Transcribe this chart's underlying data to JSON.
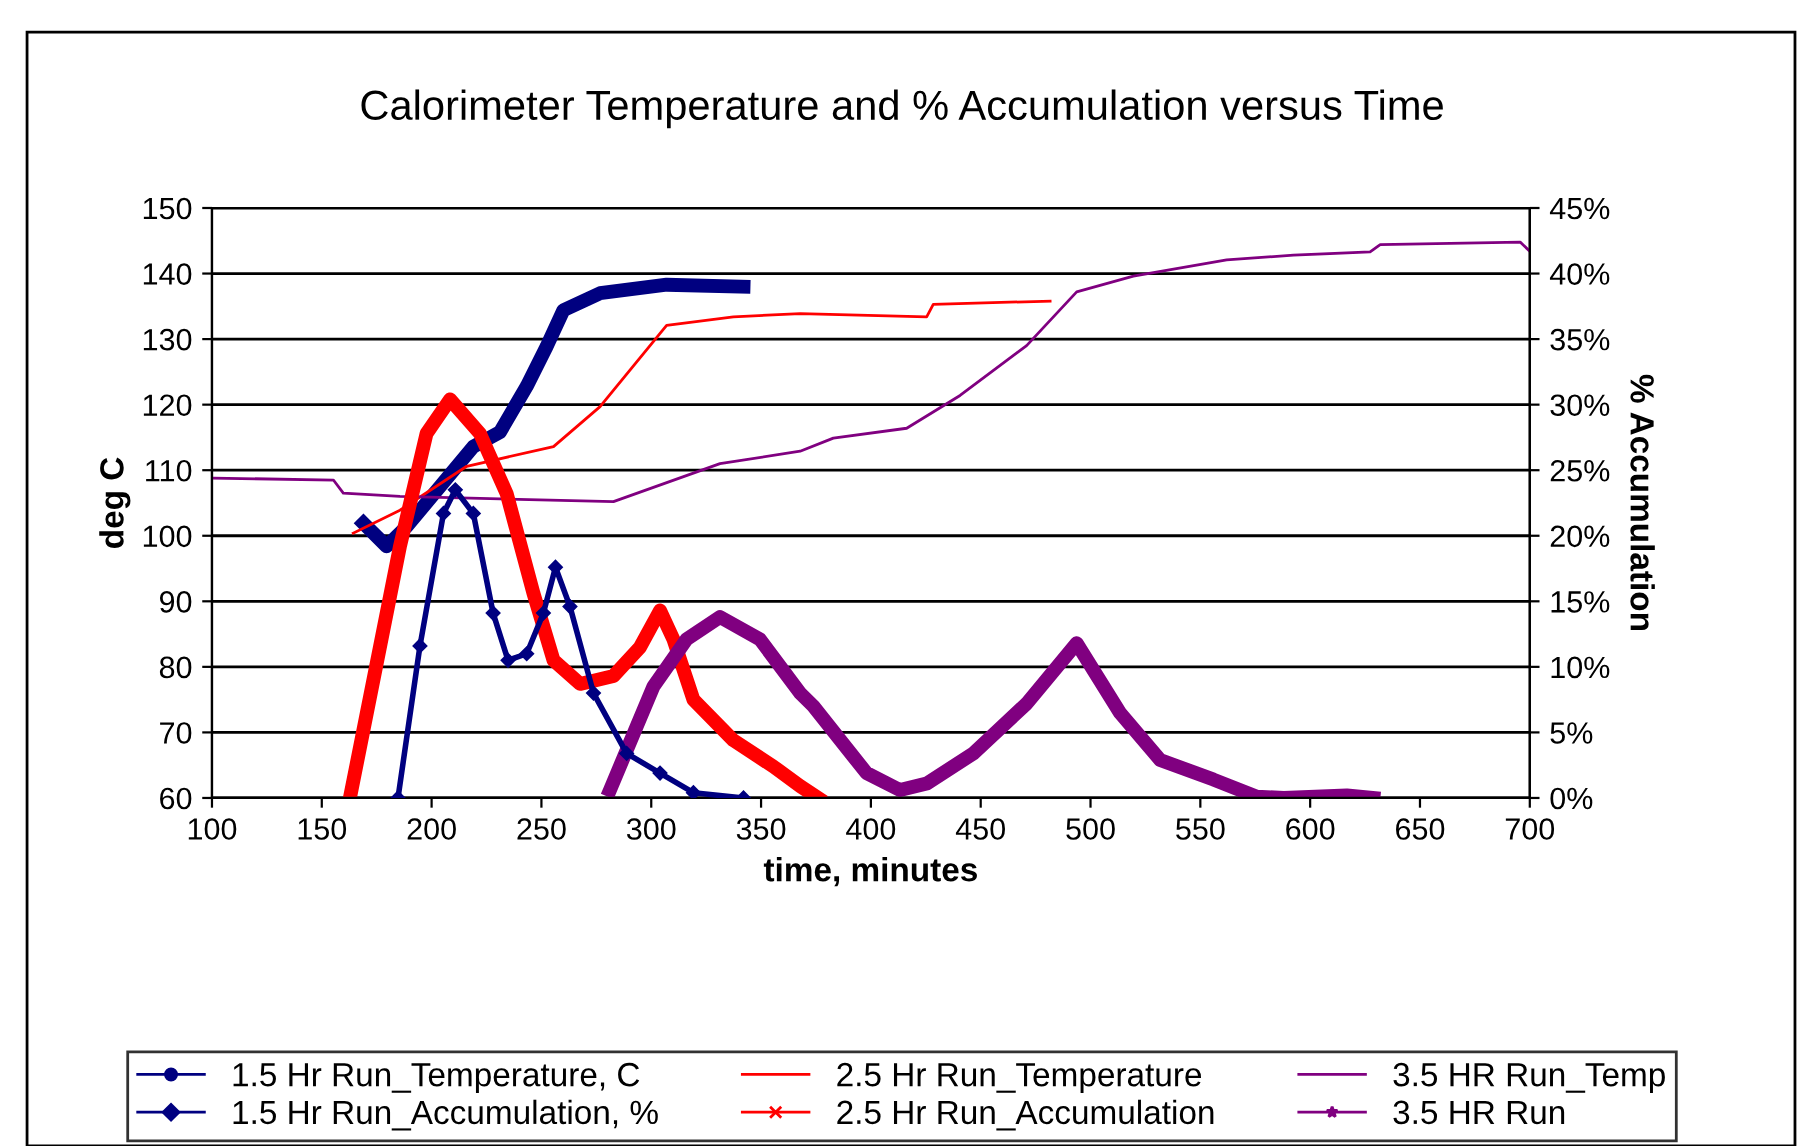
{
  "chart_data": {
    "type": "line",
    "title": "Calorimeter Temperature and % Accumulation versus Time",
    "xlabel": "time, minutes",
    "ylabel": "deg C",
    "y2label": "% Accumulation",
    "xlim": [
      100,
      700
    ],
    "xticks": [
      100,
      150,
      200,
      250,
      300,
      350,
      400,
      450,
      500,
      550,
      600,
      650,
      700
    ],
    "ylim": [
      60,
      150
    ],
    "yticks": [
      60,
      70,
      80,
      90,
      100,
      110,
      120,
      130,
      140,
      150
    ],
    "y2lim": [
      0,
      45
    ],
    "y2ticks": [
      {
        "value": 0,
        "label": "0%"
      },
      {
        "value": 5,
        "label": "5%"
      },
      {
        "value": 10,
        "label": "10%"
      },
      {
        "value": 15,
        "label": "15%"
      },
      {
        "value": 20,
        "label": "20%"
      },
      {
        "value": 25,
        "label": "25%"
      },
      {
        "value": 30,
        "label": "30%"
      },
      {
        "value": 35,
        "label": "35%"
      },
      {
        "value": 40,
        "label": "40%"
      },
      {
        "value": 45,
        "label": "45%"
      }
    ],
    "grid": "y",
    "legend": "bottom",
    "series": [
      {
        "name": "1.5 Hr Run_Temperature, C",
        "color": "#000080",
        "marker": "circle",
        "x": [
          169,
          179.5,
          188.6,
          203.8,
          219,
          231.1,
          243.3,
          252.4,
          260,
          276.7,
          307,
          342
        ],
        "values": [
          101.9,
          98.4,
          101.4,
          107.5,
          113.6,
          115.8,
          122.8,
          128.9,
          134.4,
          137,
          138.3,
          138
        ]
      },
      {
        "name": "1.5 Hr Run_Accumulation, %",
        "color": "#000080",
        "marker": "diamond",
        "axis": "y2",
        "x": [
          184.7,
          194.7,
          205.4,
          210.8,
          219,
          228,
          234.8,
          243.3,
          250.9,
          256.4,
          263,
          273.7,
          288.8,
          304,
          319.2,
          342
        ],
        "values": [
          0,
          11.6,
          21.7,
          23.5,
          21.7,
          14.1,
          10.5,
          11,
          14.1,
          17.6,
          14.6,
          8,
          3.4,
          1.9,
          0.4,
          0
        ]
      },
      {
        "name": "2.5 Hr Run_Temperature",
        "color": "#ff0000",
        "marker": "none",
        "x": [
          164.3,
          185.6,
          216,
          255.5,
          276.7,
          307,
          337.4,
          367.8,
          425.4,
          428.4,
          481.6
        ],
        "values": [
          100.4,
          103.9,
          110.6,
          113.6,
          119.7,
          132.1,
          133.4,
          133.9,
          133.4,
          135.3,
          135.8
        ]
      },
      {
        "name": "2.5 Hr Run_Accumulation",
        "color": "#ff0000",
        "marker": "cross",
        "axis": "y2",
        "x": [
          162.8,
          173.5,
          185.6,
          197.7,
          208.4,
          222,
          234.2,
          246.4,
          255.5,
          267.6,
          282.8,
          294.9,
          304,
          310.1,
          319.2,
          337.4,
          355.6,
          367.8,
          376
        ],
        "values": [
          0,
          9,
          19.2,
          27.8,
          30.4,
          27.8,
          23.2,
          15.6,
          10.5,
          8.7,
          9.3,
          11.5,
          14.3,
          12.1,
          7.5,
          4.4,
          2.4,
          0.9,
          0
        ]
      },
      {
        "name": "3.5 HR Run_Temp",
        "color": "#800080",
        "marker": "none",
        "x": [
          100.6,
          155.3,
          159.8,
          185.6,
          282.8,
          331.3,
          367.8,
          382.9,
          416.3,
          440.6,
          470.9,
          493.7,
          519.5,
          562,
          592.4,
          627.3,
          631.9,
          695.6,
          700
        ],
        "values": [
          108.8,
          108.5,
          106.5,
          106,
          105.2,
          111,
          112.9,
          114.9,
          116.4,
          121.4,
          129,
          137.2,
          139.6,
          142.1,
          142.8,
          143.3,
          144.4,
          144.8,
          143.4
        ]
      },
      {
        "name": "3.5 HR Run",
        "color": "#800080",
        "marker": "star",
        "axis": "y2",
        "x": [
          281.2,
          301,
          316.1,
          331.3,
          349.5,
          367.8,
          373.8,
          398,
          413.3,
          425.4,
          446.7,
          470.9,
          493.7,
          513.4,
          531.7,
          556,
          575.7,
          588,
          616.7,
          628.8
        ],
        "values": [
          0.6,
          8.5,
          12.1,
          13.8,
          12.1,
          8,
          7,
          1.9,
          0.6,
          1.1,
          3.4,
          7.2,
          11.8,
          6.5,
          2.9,
          1.4,
          0.1,
          0,
          0.2,
          0
        ]
      }
    ]
  }
}
